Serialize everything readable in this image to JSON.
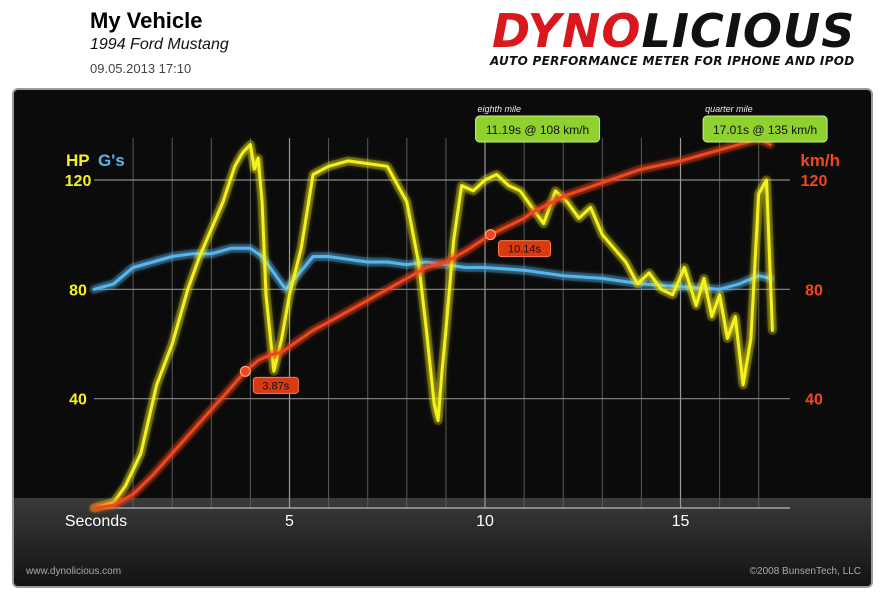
{
  "header": {
    "title": "My Vehicle",
    "vehicle": "1994 Ford Mustang",
    "datetime": "09.05.2013 17:10"
  },
  "logo": {
    "text_red": "DYNO",
    "text_black": "LICIOUS",
    "tagline": "AUTO PERFORMANCE METER FOR IPHONE AND IPOD"
  },
  "footer": {
    "left": "www.dynolicious.com",
    "right": "©2008 BunsenTech, LLC"
  },
  "colors": {
    "hp": "#f4f11c",
    "gs": "#58b6ee",
    "speed": "#f2471e",
    "marker": "#8fd12e",
    "background": "#0b0b0b"
  },
  "chart_data": {
    "type": "line",
    "xlabel": "Seconds",
    "x_ticks": [
      5,
      10,
      15
    ],
    "xlim": [
      0,
      17.8
    ],
    "left_axis": {
      "labels": [
        "HP",
        "G's"
      ],
      "ticks": [
        40,
        80,
        120
      ],
      "ylim": [
        0,
        150
      ]
    },
    "right_axis": {
      "label": "km/h",
      "ticks": [
        40,
        80,
        120
      ],
      "ylim": [
        0,
        150
      ]
    },
    "series": [
      {
        "name": "HP",
        "axis": "left",
        "x": [
          0,
          0.5,
          0.8,
          1.2,
          1.6,
          2.0,
          2.4,
          2.7,
          3.0,
          3.3,
          3.6,
          3.8,
          4.0,
          4.1,
          4.2,
          4.3,
          4.4,
          4.6,
          4.8,
          5.0,
          5.3,
          5.6,
          6.0,
          6.5,
          7.0,
          7.5,
          8.0,
          8.3,
          8.5,
          8.7,
          8.8,
          8.9,
          9.0,
          9.2,
          9.4,
          9.7,
          10.0,
          10.3,
          10.6,
          10.9,
          11.2,
          11.5,
          11.8,
          12.1,
          12.4,
          12.7,
          13.0,
          13.3,
          13.6,
          13.9,
          14.2,
          14.5,
          14.8,
          15.1,
          15.4,
          15.6,
          15.8,
          16.0,
          16.2,
          16.4,
          16.6,
          16.8,
          17.0,
          17.2,
          17.35
        ],
        "values": [
          0,
          2,
          8,
          20,
          45,
          60,
          80,
          92,
          102,
          112,
          125,
          130,
          133,
          124,
          128,
          112,
          78,
          50,
          62,
          78,
          95,
          122,
          125,
          127,
          126,
          125,
          112,
          90,
          65,
          38,
          32,
          50,
          65,
          98,
          118,
          116,
          120,
          122,
          118,
          116,
          110,
          104,
          116,
          112,
          106,
          110,
          100,
          95,
          90,
          82,
          86,
          80,
          78,
          88,
          74,
          84,
          70,
          78,
          62,
          70,
          45,
          62,
          115,
          120,
          65
        ]
      },
      {
        "name": "G's",
        "axis": "left",
        "x": [
          0,
          0.5,
          1.0,
          1.5,
          2.0,
          2.5,
          3.0,
          3.5,
          4.0,
          4.3,
          4.6,
          4.9,
          5.2,
          5.6,
          6.0,
          6.5,
          7.0,
          7.5,
          8.0,
          8.5,
          9.0,
          9.5,
          10.0,
          11.0,
          12.0,
          13.0,
          14.0,
          15.0,
          16.0,
          16.5,
          17.0,
          17.3
        ],
        "values": [
          80,
          82,
          88,
          90,
          92,
          93,
          93,
          95,
          95,
          92,
          86,
          80,
          85,
          92,
          92,
          91,
          90,
          90,
          89,
          90,
          89,
          88,
          88,
          87,
          85,
          84,
          82,
          81,
          80,
          82,
          85,
          84
        ]
      },
      {
        "name": "km/h",
        "axis": "right",
        "x": [
          0,
          0.5,
          1.0,
          1.5,
          2.0,
          2.5,
          3.0,
          3.5,
          3.87,
          4.2,
          4.5,
          4.8,
          5.2,
          5.6,
          6.0,
          6.5,
          7.0,
          7.5,
          8.0,
          8.5,
          9.0,
          9.5,
          10.14,
          11.0,
          11.19,
          12.0,
          13.0,
          14.0,
          15.0,
          16.0,
          17.01,
          17.3
        ],
        "values": [
          0,
          1,
          5,
          12,
          20,
          28,
          36,
          44,
          50,
          54,
          56,
          57,
          61,
          65,
          68,
          72,
          76,
          80,
          84,
          88,
          90,
          94,
          100,
          106,
          108,
          114,
          119,
          124,
          127,
          131,
          135,
          133
        ]
      }
    ],
    "speed_markers": [
      {
        "x": 3.87,
        "label": "3.87s"
      },
      {
        "x": 10.14,
        "label": "10.14s"
      }
    ],
    "distance_markers": [
      {
        "x": 11.19,
        "title": "eighth mile",
        "label": "11.19s @ 108 km/h"
      },
      {
        "x": 17.01,
        "title": "quarter mile",
        "label": "17.01s @ 135 km/h"
      }
    ]
  }
}
